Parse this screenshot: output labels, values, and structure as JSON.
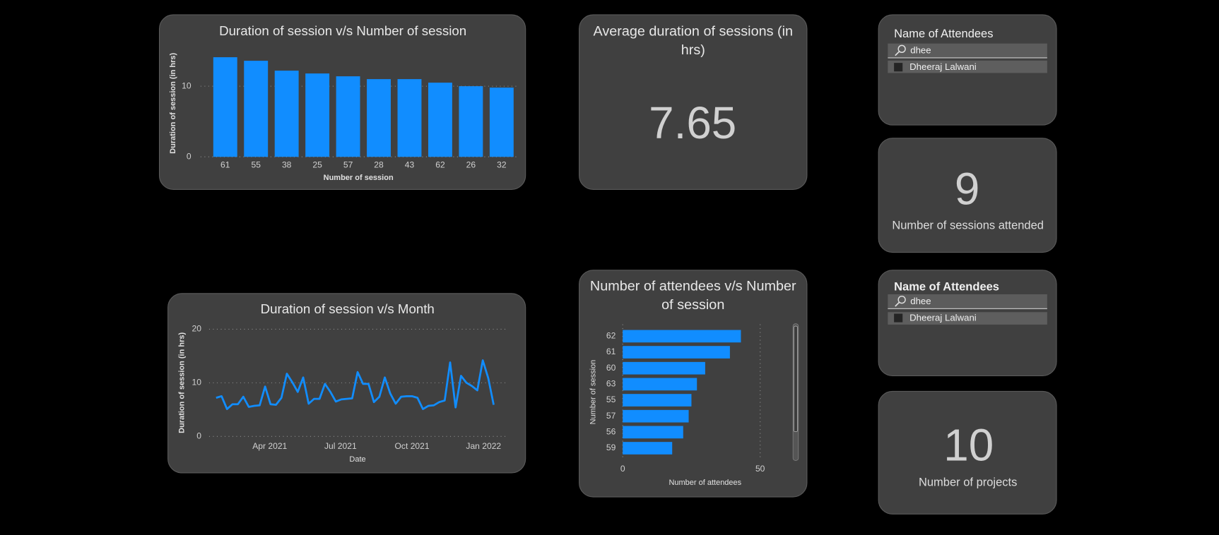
{
  "chart_data": [
    {
      "type": "bar",
      "title": "Duration of session v/s Number of session",
      "xlabel": "Number of session",
      "ylabel": "Duration of session (in hrs)",
      "categories": [
        "61",
        "55",
        "38",
        "25",
        "57",
        "28",
        "43",
        "62",
        "26",
        "32"
      ],
      "values": [
        14.1,
        13.6,
        12.2,
        11.8,
        11.4,
        11.0,
        11.0,
        10.5,
        10.0,
        9.8
      ],
      "color": "#118dff",
      "ylim": [
        0,
        15
      ],
      "yticks": [
        0,
        10
      ],
      "grid": true
    },
    {
      "type": "line",
      "title": "Duration of session v/s Month",
      "xlabel": "Date",
      "ylabel": "Duration of session (in hrs)",
      "x": [
        "2021-01-22",
        "2021-01-29",
        "2021-02-05",
        "2021-02-12",
        "2021-02-19",
        "2021-02-26",
        "2021-03-05",
        "2021-03-12",
        "2021-03-19",
        "2021-03-26",
        "2021-04-02",
        "2021-04-09",
        "2021-04-16",
        "2021-04-23",
        "2021-04-30",
        "2021-05-07",
        "2021-05-14",
        "2021-05-21",
        "2021-05-28",
        "2021-06-04",
        "2021-06-11",
        "2021-06-18",
        "2021-06-25",
        "2021-07-02",
        "2021-07-09",
        "2021-07-16",
        "2021-07-23",
        "2021-07-30",
        "2021-08-06",
        "2021-08-13",
        "2021-08-20",
        "2021-08-27",
        "2021-09-03",
        "2021-09-10",
        "2021-09-17",
        "2021-09-24",
        "2021-10-01",
        "2021-10-08",
        "2021-10-15",
        "2021-10-22",
        "2021-10-29",
        "2021-11-05",
        "2021-11-12",
        "2021-11-19",
        "2021-11-26",
        "2021-12-03",
        "2021-12-10",
        "2021-12-17",
        "2021-12-24",
        "2021-12-31",
        "2022-01-07",
        "2022-01-14"
      ],
      "values": [
        7.2,
        7.5,
        5.1,
        6.0,
        6.0,
        7.4,
        5.5,
        5.7,
        5.8,
        9.3,
        6.0,
        5.9,
        7.2,
        11.7,
        10.1,
        8.3,
        11.0,
        6.1,
        7.0,
        7.0,
        9.8,
        8.3,
        6.5,
        6.9,
        7.0,
        7.1,
        12.0,
        9.8,
        9.8,
        6.4,
        7.4,
        11.0,
        8.0,
        6.1,
        7.4,
        7.5,
        7.5,
        7.2,
        5.1,
        5.7,
        5.8,
        6.4,
        6.7,
        13.8,
        5.4,
        11.3,
        10.0,
        9.4,
        8.6,
        14.2,
        10.9,
        5.9
      ],
      "color": "#118dff",
      "xlim": [
        "2021-01-13",
        "2022-01-29"
      ],
      "xticks": [
        {
          "value": "2021-04-01",
          "label": "Apr 2021"
        },
        {
          "value": "2021-07-01",
          "label": "Jul 2021"
        },
        {
          "value": "2021-10-01",
          "label": "Oct 2021"
        },
        {
          "value": "2022-01-01",
          "label": "Jan 2022"
        }
      ],
      "ylim": [
        0,
        20
      ],
      "yticks": [
        0,
        10,
        20
      ],
      "grid": true
    },
    {
      "type": "barh",
      "title": "Number of attendees v/s Number of session",
      "xlabel": "Number of attendees",
      "ylabel": "Number of session",
      "categories": [
        "62",
        "61",
        "60",
        "63",
        "55",
        "57",
        "56",
        "59"
      ],
      "values": [
        43,
        39,
        30,
        27,
        25,
        24,
        22,
        18
      ],
      "color": "#118dff",
      "xlim": [
        0,
        56
      ],
      "xticks": [
        0,
        50
      ],
      "grid": true
    }
  ],
  "cards": [
    {
      "title": "Average duration of sessions (in hrs)",
      "value": 7.65
    },
    {
      "value": 9,
      "label": "Number of sessions attended"
    },
    {
      "value": 10,
      "label": "Number of projects"
    }
  ],
  "slicers": [
    {
      "title": "Name of Attendees",
      "search": "dhee",
      "items": [
        "Dheeraj Lalwani"
      ]
    },
    {
      "title": "Name of Attendees",
      "search": "dhee",
      "items": [
        "Dheeraj Lalwani"
      ]
    }
  ]
}
